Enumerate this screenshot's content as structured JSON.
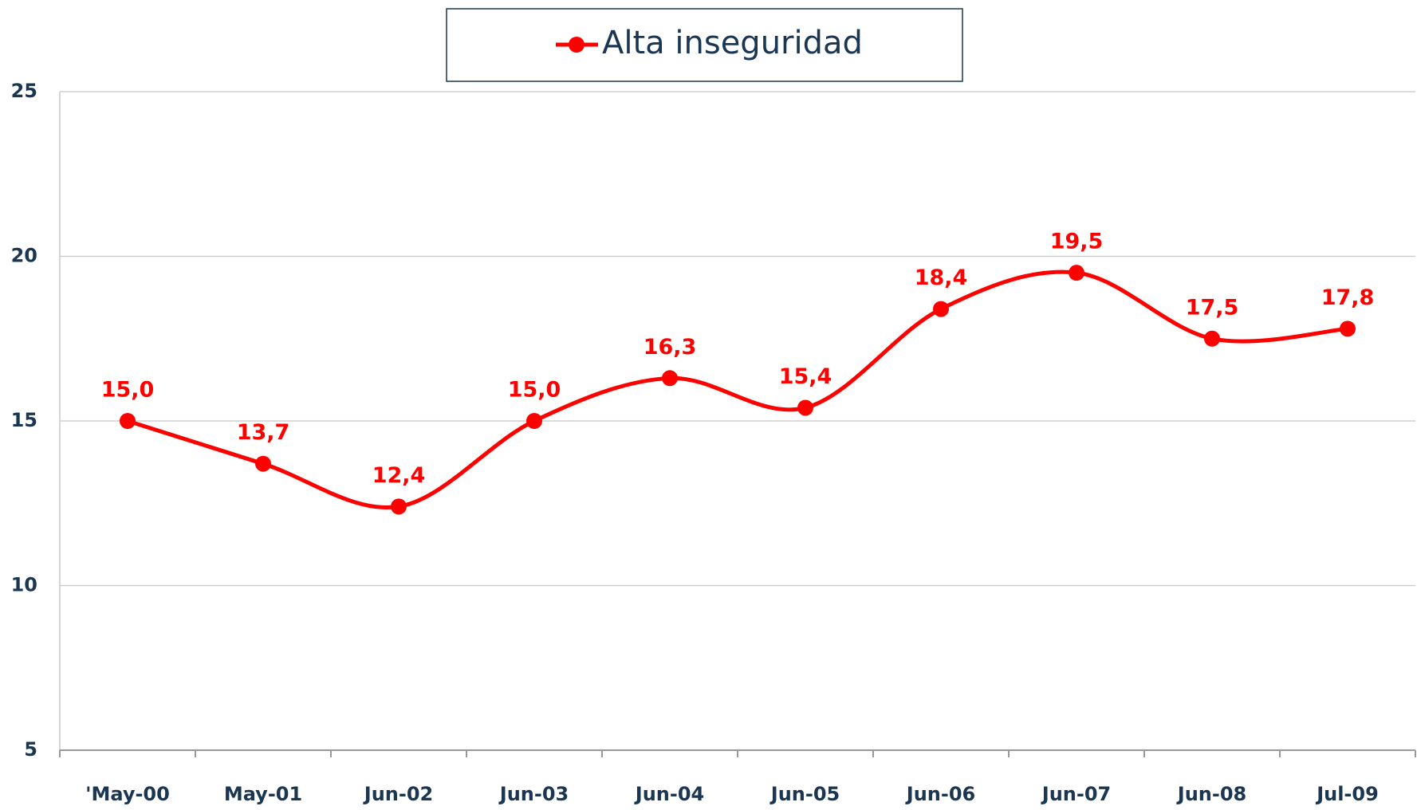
{
  "chart_data": {
    "type": "line",
    "categories": [
      "'May-00",
      "May-01",
      "Jun-02",
      "Jun-03",
      "Jun-04",
      "Jun-05",
      "Jun-06",
      "Jun-07",
      "Jun-08",
      "Jul-09"
    ],
    "series": [
      {
        "name": "Alta inseguridad",
        "color": "#ff0000",
        "values": [
          15.0,
          13.7,
          12.4,
          15.0,
          16.3,
          15.4,
          18.4,
          19.5,
          17.5,
          17.8
        ],
        "value_labels": [
          "15,0",
          "13,7",
          "12,4",
          "15,0",
          "16,3",
          "15,4",
          "18,4",
          "19,5",
          "17,5",
          "17,8"
        ]
      }
    ],
    "ylim": [
      5,
      25
    ],
    "yticks": [
      5,
      10,
      15,
      20,
      25
    ],
    "grid": true,
    "smooth": true,
    "legend": "top"
  }
}
